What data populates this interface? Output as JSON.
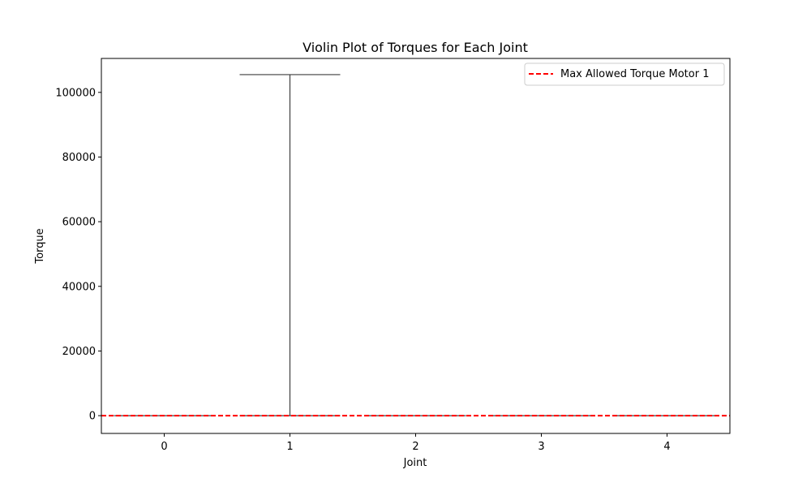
{
  "chart_data": {
    "type": "violin",
    "title": "Violin Plot of Torques for Each Joint",
    "xlabel": "Joint",
    "ylabel": "Torque",
    "categories": [
      "0",
      "1",
      "2",
      "3",
      "4"
    ],
    "x_ticks": [
      "0",
      "1",
      "2",
      "3",
      "4"
    ],
    "y_ticks": [
      "0",
      "20000",
      "40000",
      "60000",
      "80000",
      "100000"
    ],
    "xlim": [
      -0.5,
      4.5
    ],
    "ylim": [
      -5500,
      110500
    ],
    "series": [
      {
        "category": 0,
        "min": 0,
        "max": 0
      },
      {
        "category": 1,
        "min": 0,
        "max": 105500
      },
      {
        "category": 2,
        "min": 0,
        "max": 0
      },
      {
        "category": 3,
        "min": 0,
        "max": 0
      },
      {
        "category": 4,
        "min": 0,
        "max": 0
      }
    ],
    "reference_line": {
      "name": "Max Allowed Torque Motor 1",
      "y": 0,
      "style": "dashed",
      "color": "#ff0000"
    },
    "legend": {
      "entries": [
        "Max Allowed Torque Motor 1"
      ],
      "placement": "top-right"
    },
    "grid": false,
    "colors": {
      "extrema": "#3f3f3f",
      "reference": "#ff0000",
      "axes": "#000000"
    }
  }
}
